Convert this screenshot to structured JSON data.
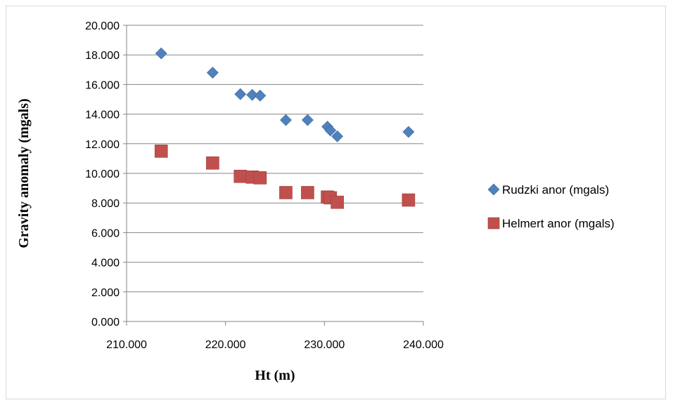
{
  "chart_data": {
    "type": "scatter",
    "title": "",
    "xlabel": "Ht (m)",
    "ylabel": "Gravity anomaly (mgals)",
    "xlim": [
      210,
      240
    ],
    "ylim": [
      0,
      20
    ],
    "xticks": [
      210,
      220,
      230,
      240
    ],
    "yticks": [
      0,
      2,
      4,
      6,
      8,
      10,
      12,
      14,
      16,
      18,
      20
    ],
    "xtick_labels": [
      "210.000",
      "220.000",
      "230.000",
      "240.000"
    ],
    "ytick_labels": [
      "0.000",
      "2.000",
      "4.000",
      "6.000",
      "8.000",
      "10.000",
      "12.000",
      "14.000",
      "16.000",
      "18.000",
      "20.000"
    ],
    "grid": "horizontal",
    "legend_position": "right",
    "series": [
      {
        "name": "Rudzki anor (mgals)",
        "marker": "diamond",
        "color": "#4F81BD",
        "x": [
          213.5,
          218.7,
          221.5,
          222.7,
          223.5,
          226.1,
          228.3,
          230.3,
          230.6,
          231.3,
          238.5
        ],
        "y": [
          18.1,
          16.8,
          15.35,
          15.3,
          15.25,
          13.6,
          13.6,
          13.15,
          12.9,
          12.5,
          12.8
        ]
      },
      {
        "name": "Helmert anor (mgals)",
        "marker": "square",
        "color": "#C0504D",
        "x": [
          213.5,
          218.7,
          221.5,
          222.7,
          223.5,
          226.1,
          228.3,
          230.3,
          230.6,
          231.3,
          238.5
        ],
        "y": [
          11.5,
          10.7,
          9.8,
          9.75,
          9.7,
          8.7,
          8.7,
          8.4,
          8.35,
          8.05,
          8.2
        ]
      }
    ]
  }
}
